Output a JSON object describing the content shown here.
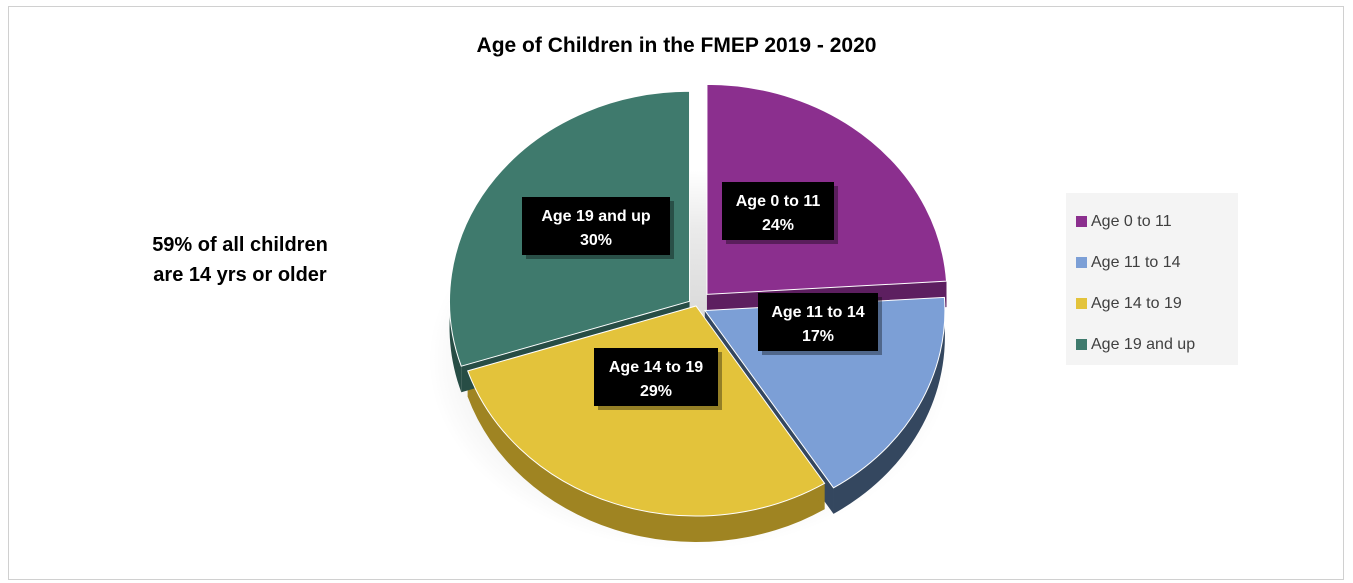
{
  "chart_data": {
    "type": "pie",
    "title": "Age of Children in the FMEP 2019 - 2020",
    "annotation": [
      "59% of all children",
      "are 14 yrs or older"
    ],
    "slices": [
      {
        "name": "Age 0 to 11",
        "value": 24,
        "label": "24%",
        "color": "#8b2f8e",
        "side": "#5d1f60"
      },
      {
        "name": "Age 11 to 14",
        "value": 17,
        "label": "17%",
        "color": "#7c9fd6",
        "side": "#34475f"
      },
      {
        "name": "Age 14 to 19",
        "value": 29,
        "label": "29%",
        "color": "#e3c33b",
        "side": "#9f8422"
      },
      {
        "name": "Age 19 and up",
        "value": 30,
        "label": "30%",
        "color": "#3f7a6d",
        "side": "#274d45"
      }
    ],
    "legend": {
      "placement": "right"
    }
  }
}
